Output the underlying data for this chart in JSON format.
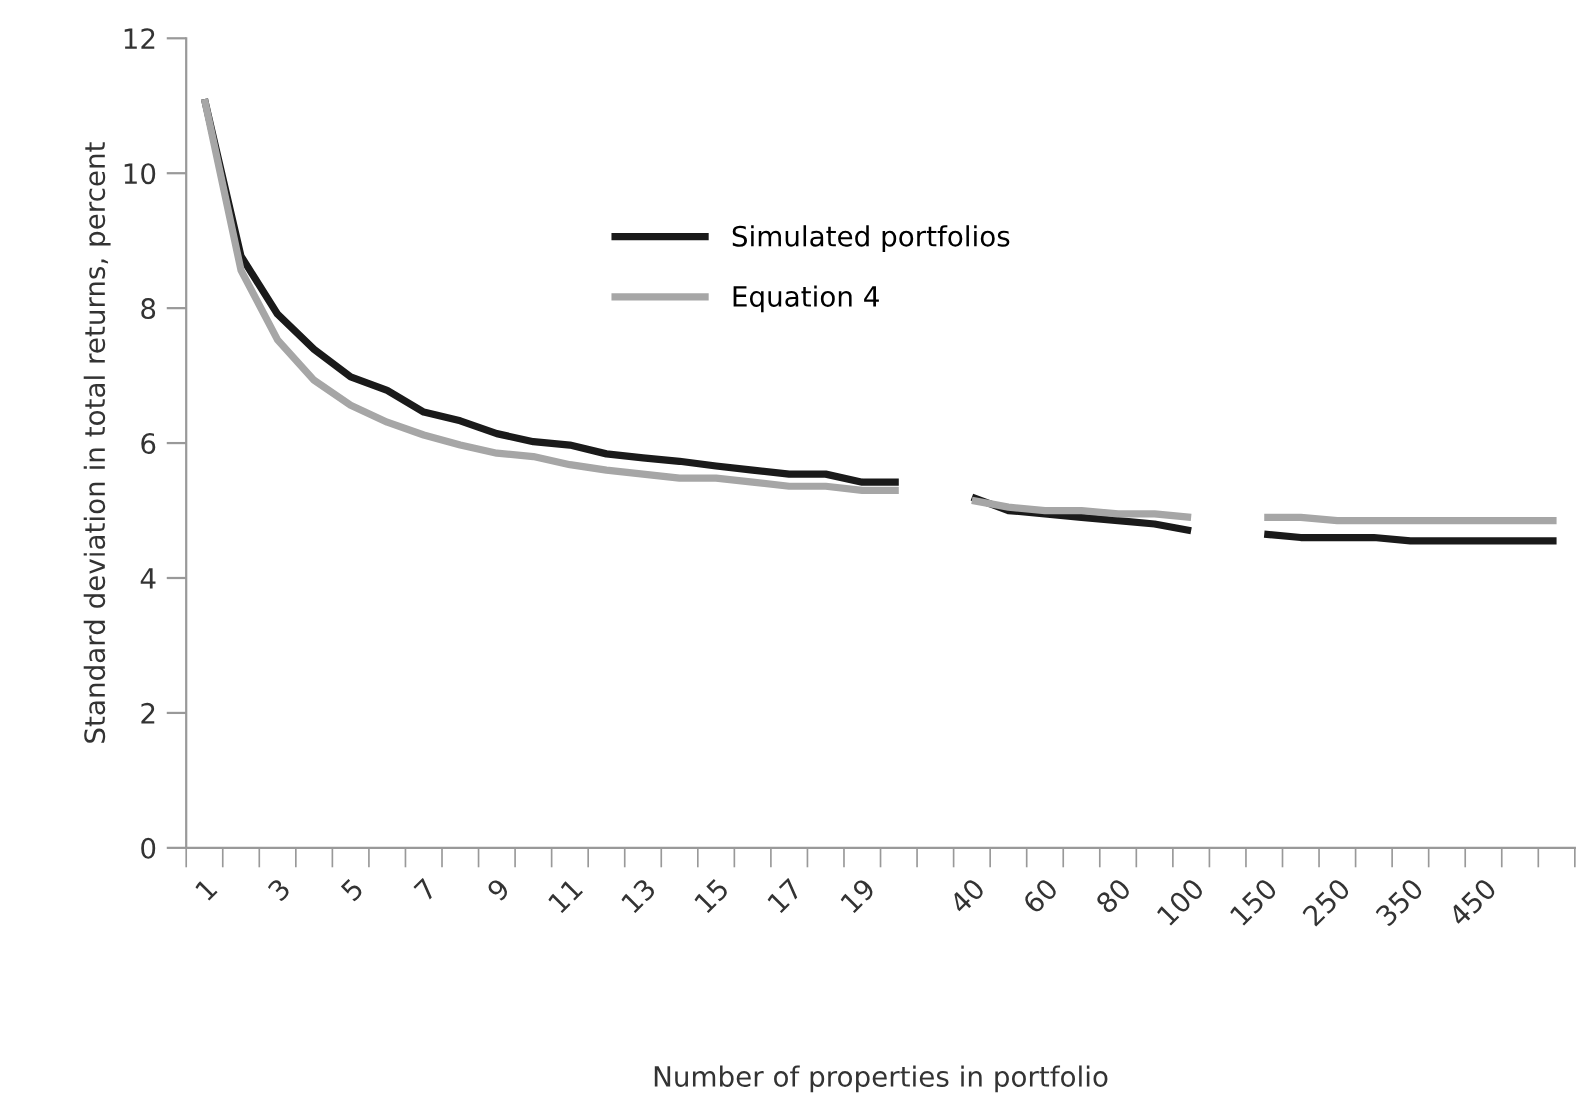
{
  "chart_data": {
    "type": "line",
    "xlabel": "Number of properties in portfolio",
    "ylabel": "Standard deviation in total returns, percent",
    "categories": [
      "1",
      null,
      "3",
      null,
      "5",
      null,
      "7",
      null,
      "9",
      null,
      "11",
      null,
      "13",
      null,
      "15",
      null,
      "17",
      null,
      "19",
      null,
      null,
      "40",
      null,
      "60",
      null,
      "80",
      null,
      "100",
      null,
      "150",
      null,
      "250",
      null,
      "350",
      null,
      "450",
      null,
      null
    ],
    "series": [
      {
        "name": "Simulated portfolios",
        "color": "#1a1a1a",
        "values": [
          11.1,
          8.77,
          7.91,
          7.39,
          6.98,
          6.78,
          6.46,
          6.33,
          6.14,
          6.02,
          5.97,
          5.84,
          5.78,
          5.73,
          5.66,
          5.6,
          5.54,
          5.54,
          5.42,
          5.42,
          null,
          5.2,
          5.0,
          4.95,
          4.9,
          4.85,
          4.8,
          4.7,
          null,
          4.65,
          4.6,
          4.6,
          4.6,
          4.55,
          4.55,
          4.55,
          4.55,
          4.55
        ]
      },
      {
        "name": "Equation 4",
        "color": "#a6a6a6",
        "values": [
          11.1,
          8.56,
          7.53,
          6.93,
          6.56,
          6.31,
          6.12,
          5.97,
          5.85,
          5.8,
          5.68,
          5.6,
          5.54,
          5.48,
          5.48,
          5.42,
          5.36,
          5.36,
          5.3,
          5.3,
          null,
          5.15,
          5.05,
          5.0,
          5.0,
          4.95,
          4.95,
          4.9,
          null,
          4.9,
          4.9,
          4.85,
          4.85,
          4.85,
          4.85,
          4.85,
          4.85,
          4.85
        ]
      }
    ],
    "ylim": [
      0,
      12
    ],
    "yticks": [
      0,
      2,
      4,
      6,
      8,
      10,
      12
    ],
    "grid": false,
    "legend": "top",
    "marker": "none",
    "line_style": "solid"
  }
}
